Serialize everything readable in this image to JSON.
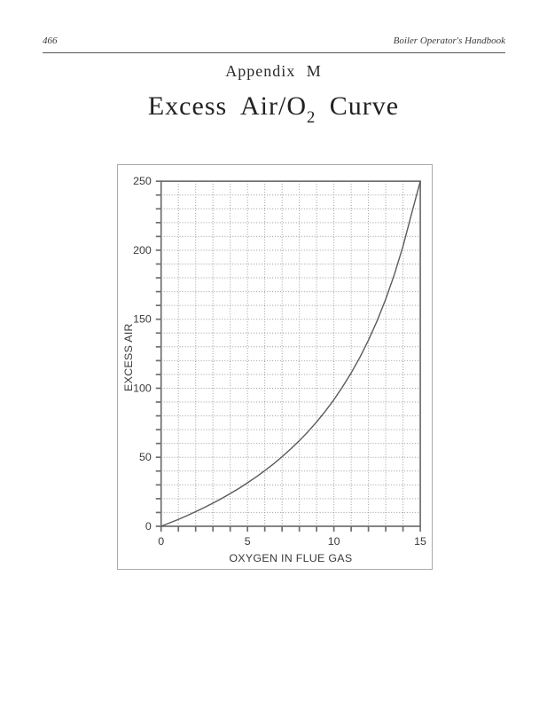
{
  "header": {
    "page_number": "466",
    "book_title": "Boiler Operator's Handbook"
  },
  "headings": {
    "appendix": "Appendix M",
    "title_prefix": "Excess Air/O",
    "title_subscript": "2",
    "title_suffix": " Curve"
  },
  "colors": {
    "grid": "#9a9a9a",
    "axis": "#6e6e6e",
    "curve": "#5a5a5a",
    "text": "#3a3a3a",
    "frame": "#aaaaaa"
  },
  "chart_data": {
    "type": "line",
    "title": "",
    "xlabel": "OXYGEN IN FLUE GAS",
    "ylabel": "EXCESS AIR",
    "xlim": [
      0,
      15
    ],
    "ylim": [
      0,
      250
    ],
    "x_major_ticks": [
      0,
      5,
      10,
      15
    ],
    "y_major_ticks": [
      0,
      50,
      100,
      150,
      200,
      250
    ],
    "x_minor_step": 1,
    "y_minor_step": 10,
    "grid": "dotted",
    "legend": "none",
    "series": [
      {
        "name": "excess_air_vs_o2",
        "points": [
          [
            0,
            0
          ],
          [
            0.5,
            2.5
          ],
          [
            1,
            5.0
          ],
          [
            1.5,
            7.7
          ],
          [
            2,
            10.6
          ],
          [
            2.5,
            13.6
          ],
          [
            3,
            16.8
          ],
          [
            3.5,
            20.1
          ],
          [
            4,
            23.7
          ],
          [
            4.5,
            27.4
          ],
          [
            5,
            31.5
          ],
          [
            5.5,
            35.7
          ],
          [
            6,
            40.3
          ],
          [
            6.5,
            45.1
          ],
          [
            7,
            50.4
          ],
          [
            7.5,
            56.0
          ],
          [
            8,
            62.0
          ],
          [
            8.5,
            68.5
          ],
          [
            9,
            75.6
          ],
          [
            9.5,
            83.3
          ],
          [
            10,
            91.7
          ],
          [
            10.5,
            101.0
          ],
          [
            11,
            111.1
          ],
          [
            11.5,
            122.3
          ],
          [
            12,
            134.8
          ],
          [
            12.5,
            148.8
          ],
          [
            13,
            164.6
          ],
          [
            13.5,
            182.4
          ],
          [
            14,
            202.9
          ],
          [
            14.5,
            226.6
          ],
          [
            15,
            250
          ]
        ]
      }
    ]
  }
}
